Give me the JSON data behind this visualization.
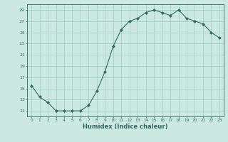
{
  "x": [
    0,
    1,
    2,
    3,
    4,
    5,
    6,
    7,
    8,
    9,
    10,
    11,
    12,
    13,
    14,
    15,
    16,
    17,
    18,
    19,
    20,
    21,
    22,
    23
  ],
  "y": [
    15.5,
    13.5,
    12.5,
    11.0,
    11.0,
    11.0,
    11.0,
    12.0,
    14.5,
    18.0,
    22.5,
    25.5,
    27.0,
    27.5,
    28.5,
    29.0,
    28.5,
    28.0,
    29.0,
    27.5,
    27.0,
    26.5,
    25.0,
    24.0
  ],
  "line_color": "#2e6b5e",
  "marker": "D",
  "marker_size": 2.2,
  "bg_color": "#cce9e1",
  "grid_color": "#99ccc0",
  "xlabel": "Humidex (Indice chaleur)",
  "yticks": [
    11,
    13,
    15,
    17,
    19,
    21,
    23,
    25,
    27,
    29
  ],
  "xticks": [
    0,
    1,
    2,
    3,
    4,
    5,
    6,
    7,
    8,
    9,
    10,
    11,
    12,
    13,
    14,
    15,
    16,
    17,
    18,
    19,
    20,
    21,
    22,
    23
  ],
  "xlim": [
    -0.5,
    23.5
  ],
  "ylim": [
    10.0,
    30.0
  ]
}
